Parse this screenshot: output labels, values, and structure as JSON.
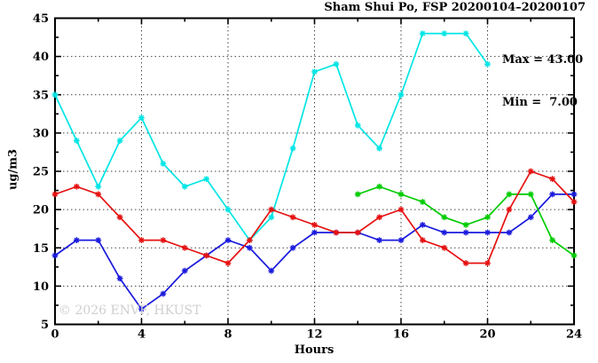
{
  "title": "Sham Shui Po, FSP 20200104–20200107",
  "annotations": {
    "max_label": "Max = 43.00",
    "min_label": "Min =  7.00"
  },
  "watermark": "© 2026 ENVF, HKUST",
  "chart_data": {
    "type": "line",
    "title": "Sham Shui Po, FSP 20200104–20200107",
    "xlabel": "Hours",
    "ylabel": "ug/m3",
    "xlim": [
      0,
      24
    ],
    "ylim": [
      5,
      45
    ],
    "x_major_ticks": [
      0,
      4,
      8,
      12,
      16,
      20,
      24
    ],
    "x_minor_step": 2,
    "y_major_ticks": [
      5,
      10,
      15,
      20,
      25,
      30,
      35,
      40,
      45
    ],
    "y_minor_step": 2.5,
    "grid": true,
    "legend_position": "none",
    "max": 43.0,
    "min": 7.0,
    "series": [
      {
        "name": "day-20200104-cyan",
        "color": "#00e5e5",
        "x": [
          0,
          1,
          2,
          3,
          4,
          5,
          6,
          7,
          8,
          9,
          10,
          11,
          12,
          13,
          14,
          15,
          16,
          17,
          18,
          19,
          20
        ],
        "y": [
          35,
          29,
          23,
          29,
          32,
          26,
          23,
          24,
          20,
          16,
          19,
          28,
          38,
          39,
          31,
          28,
          35,
          43,
          43,
          43,
          39
        ]
      },
      {
        "name": "day-20200105-blue",
        "color": "#1a1add",
        "x": [
          0,
          1,
          2,
          3,
          4,
          5,
          6,
          7,
          8,
          9,
          10,
          11,
          12,
          13,
          14,
          15,
          16,
          17,
          18,
          19,
          20,
          21,
          22,
          23,
          24
        ],
        "y": [
          14,
          16,
          16,
          11,
          7,
          9,
          12,
          14,
          16,
          15,
          12,
          15,
          17,
          17,
          17,
          16,
          16,
          18,
          17,
          17,
          17,
          17,
          19,
          22,
          22
        ]
      },
      {
        "name": "day-20200106-green",
        "color": "#00cc00",
        "x": [
          14,
          15,
          16,
          17,
          18,
          19,
          20,
          21,
          22,
          23,
          24
        ],
        "y": [
          22,
          23,
          22,
          21,
          19,
          18,
          19,
          22,
          22,
          16,
          14
        ]
      },
      {
        "name": "day-20200107-red",
        "color": "#e61010",
        "x": [
          0,
          1,
          2,
          3,
          4,
          5,
          6,
          7,
          8,
          9,
          10,
          11,
          12,
          13,
          14,
          15,
          16,
          17,
          18,
          19,
          20,
          21,
          22,
          23,
          24
        ],
        "y": [
          22,
          23,
          22,
          19,
          16,
          16,
          15,
          14,
          13,
          16,
          20,
          19,
          18,
          17,
          17,
          19,
          20,
          16,
          15,
          13,
          13,
          20,
          25,
          24,
          21
        ]
      }
    ]
  }
}
